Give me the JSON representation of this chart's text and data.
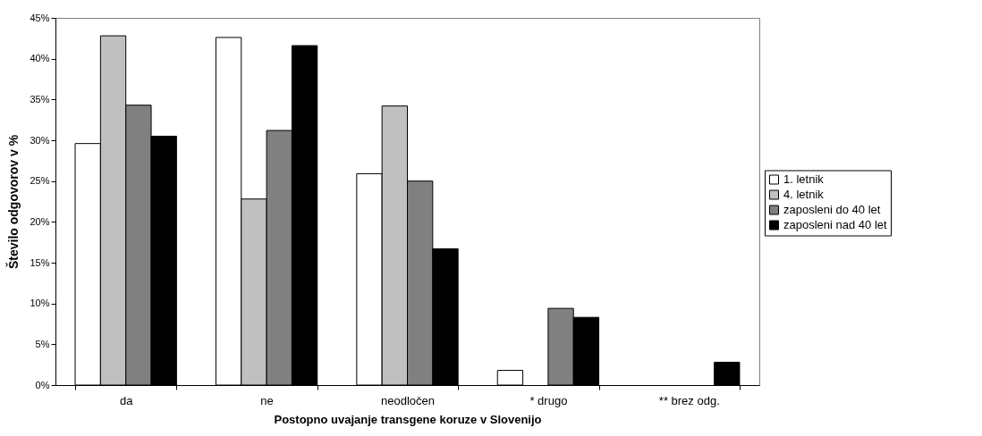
{
  "chart_data": {
    "type": "bar",
    "xlabel": "Postopno uvajanje transgene koruze v Slovenijo",
    "ylabel": "Število odgovorov v %",
    "categories": [
      "da",
      "ne",
      "neodločen",
      "* drugo",
      "** brez odg."
    ],
    "series": [
      {
        "name": "1. letnik",
        "color": "#ffffff",
        "values": [
          29.6,
          42.6,
          25.9,
          1.8,
          0
        ]
      },
      {
        "name": "4. letnik",
        "color": "#c0c0c0",
        "values": [
          42.8,
          22.8,
          34.2,
          0,
          0
        ]
      },
      {
        "name": "zaposleni do 40 let",
        "color": "#808080",
        "values": [
          34.3,
          31.2,
          25.0,
          9.4,
          0
        ]
      },
      {
        "name": "zaposleni nad 40 let",
        "color": "#000000",
        "values": [
          30.5,
          41.6,
          16.7,
          8.3,
          2.8
        ]
      }
    ],
    "ylim": [
      0,
      45
    ],
    "yticks": [
      {
        "value": 0,
        "label": "0%"
      },
      {
        "value": 5,
        "label": "5%"
      },
      {
        "value": 10,
        "label": "10%"
      },
      {
        "value": 15,
        "label": "15%"
      },
      {
        "value": 20,
        "label": "20%"
      },
      {
        "value": 25,
        "label": "25%"
      },
      {
        "value": 30,
        "label": "30%"
      },
      {
        "value": 35,
        "label": "35%"
      },
      {
        "value": 40,
        "label": "40%"
      },
      {
        "value": 45,
        "label": "45%"
      }
    ],
    "grid": false,
    "legend": "right"
  }
}
